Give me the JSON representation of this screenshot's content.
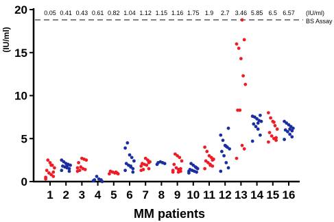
{
  "chart_data": {
    "type": "scatter",
    "ylabel": "(IU/ml)",
    "xlabel": "MM patients",
    "ylim": [
      0,
      20
    ],
    "yticks": [
      0,
      5,
      10,
      15,
      20
    ],
    "categories": [
      "1",
      "2",
      "3",
      "4",
      "5",
      "6",
      "7",
      "8",
      "9",
      "10",
      "11",
      "12",
      "13",
      "14",
      "15",
      "16"
    ],
    "bs_assay": {
      "unit_label": "(IU/ml)",
      "label": "BS Assay",
      "line_y": 18.8,
      "values": [
        "0.05",
        "0.41",
        "0.43",
        "0.61",
        "0.82",
        "1.04",
        "1.12",
        "1.15",
        "1.16",
        "1.75",
        "1.9",
        "2.7",
        "3.46",
        "5.85",
        "6.5",
        "6.57"
      ]
    },
    "colors": {
      "red": "#ee1c25",
      "blue": "#1a2ea0"
    },
    "series": [
      {
        "category": "1",
        "color": "red",
        "values": [
          0.3,
          0.6,
          0.8,
          1.0,
          1.3,
          1.6,
          1.9,
          2.2,
          2.5,
          0.5,
          1.1,
          1.9
        ]
      },
      {
        "category": "2",
        "color": "blue",
        "values": [
          1.3,
          1.5,
          1.6,
          1.7,
          1.8,
          1.9,
          2.0,
          2.1,
          2.3,
          2.5,
          1.2,
          1.8
        ]
      },
      {
        "category": "3",
        "color": "red",
        "values": [
          1.2,
          1.4,
          1.5,
          1.7,
          2.2,
          2.5,
          2.6,
          2.7,
          1.3,
          1.6
        ]
      },
      {
        "category": "4",
        "color": "blue",
        "values": [
          0.1,
          0.2,
          0.3,
          0.6,
          0.2,
          0.0
        ]
      },
      {
        "category": "5",
        "color": "red",
        "values": [
          0.9,
          1.0,
          1.0,
          1.1,
          1.2,
          0.9,
          1.1
        ]
      },
      {
        "category": "6",
        "color": "blue",
        "values": [
          1.3,
          1.5,
          1.7,
          1.9,
          2.1,
          2.4,
          2.8,
          3.1,
          4.5,
          3.9,
          1.1,
          1.8
        ]
      },
      {
        "category": "7",
        "color": "red",
        "values": [
          1.3,
          1.5,
          1.9,
          2.0,
          2.1,
          2.3,
          2.5,
          2.7,
          1.4,
          1.8,
          2.2
        ]
      },
      {
        "category": "8",
        "color": "blue",
        "values": [
          2.0,
          2.1,
          2.2,
          2.3,
          2.2
        ]
      },
      {
        "category": "9",
        "color": "red",
        "values": [
          1.1,
          1.2,
          1.4,
          1.6,
          2.0,
          2.4,
          2.8,
          3.0,
          3.2,
          1.3,
          1.5,
          1.1
        ]
      },
      {
        "category": "10",
        "color": "blue",
        "values": [
          1.0,
          1.1,
          1.2,
          1.3,
          1.4,
          1.5,
          1.7,
          1.9,
          2.1,
          1.2,
          1.6
        ]
      },
      {
        "category": "11",
        "color": "red",
        "values": [
          1.5,
          1.8,
          2.0,
          2.2,
          2.4,
          2.6,
          2.8,
          3.0,
          3.5,
          4.0,
          2.5,
          1.9
        ]
      },
      {
        "category": "12",
        "color": "blue",
        "values": [
          1.2,
          1.6,
          2.2,
          3.0,
          3.5,
          3.8,
          4.0,
          4.2,
          4.8,
          5.4,
          6.2,
          4.1
        ]
      },
      {
        "category": "13",
        "color": "red",
        "values": [
          2.7,
          3.8,
          4.2,
          8.3,
          8.3,
          11.3,
          12.3,
          14.3,
          15.5,
          16.0,
          16.5,
          18.8
        ]
      },
      {
        "category": "14",
        "color": "blue",
        "values": [
          4.7,
          5.4,
          6.1,
          6.4,
          6.7,
          7.0,
          7.1,
          7.3,
          7.5,
          7.6,
          7.7,
          6.8
        ]
      },
      {
        "category": "15",
        "color": "red",
        "values": [
          4.6,
          4.8,
          5.0,
          5.3,
          5.7,
          6.1,
          6.5,
          7.0,
          7.4,
          8.0,
          5.1,
          6.9
        ]
      },
      {
        "category": "16",
        "color": "blue",
        "values": [
          4.9,
          5.2,
          5.5,
          5.8,
          6.0,
          6.2,
          6.4,
          6.6,
          6.8,
          7.0,
          5.9,
          6.1
        ]
      }
    ]
  }
}
